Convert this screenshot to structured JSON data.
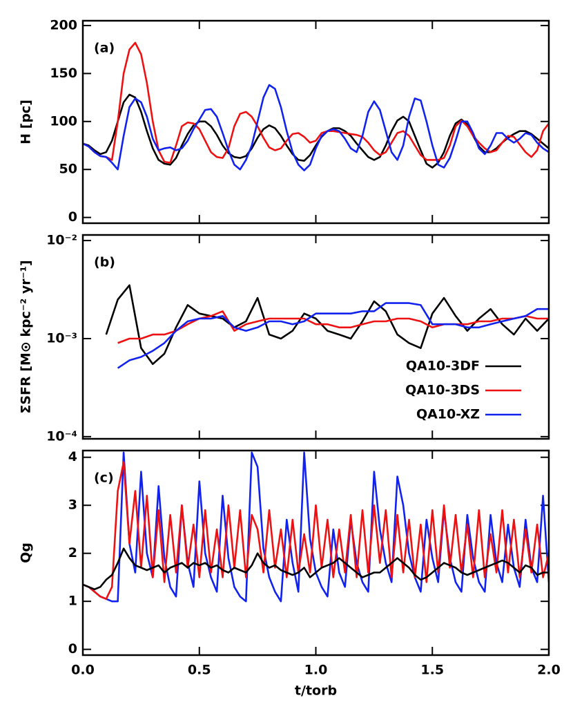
{
  "chart_data": [
    {
      "type": "line",
      "annotation": "(a)",
      "ylabel": "H [pc]",
      "xlim": [
        0,
        2
      ],
      "ylim": [
        -6,
        205
      ],
      "yticks": [
        0,
        50,
        100,
        150,
        200
      ],
      "x": [
        0,
        0.025,
        0.05,
        0.075,
        0.1,
        0.125,
        0.15,
        0.175,
        0.2,
        0.225,
        0.25,
        0.275,
        0.3,
        0.325,
        0.35,
        0.375,
        0.4,
        0.425,
        0.45,
        0.475,
        0.5,
        0.525,
        0.55,
        0.575,
        0.6,
        0.625,
        0.65,
        0.675,
        0.7,
        0.725,
        0.75,
        0.775,
        0.8,
        0.825,
        0.85,
        0.875,
        0.9,
        0.925,
        0.95,
        0.975,
        1,
        1.025,
        1.05,
        1.075,
        1.1,
        1.125,
        1.15,
        1.175,
        1.2,
        1.225,
        1.25,
        1.275,
        1.3,
        1.325,
        1.35,
        1.375,
        1.4,
        1.425,
        1.45,
        1.475,
        1.5,
        1.525,
        1.55,
        1.575,
        1.6,
        1.625,
        1.65,
        1.675,
        1.7,
        1.725,
        1.75,
        1.775,
        1.8,
        1.825,
        1.85,
        1.875,
        1.9,
        1.925,
        1.95,
        1.975,
        2
      ],
      "series": [
        {
          "name": "QA10-3DF",
          "color": "#000000",
          "values": [
            77,
            75,
            70,
            66,
            68,
            80,
            100,
            120,
            128,
            125,
            110,
            90,
            72,
            60,
            56,
            55,
            62,
            75,
            87,
            96,
            100,
            100,
            95,
            86,
            75,
            67,
            63,
            62,
            64,
            72,
            83,
            92,
            96,
            93,
            85,
            75,
            66,
            60,
            59,
            65,
            75,
            84,
            90,
            93,
            93,
            90,
            85,
            77,
            70,
            63,
            60,
            63,
            75,
            90,
            101,
            105,
            100,
            85,
            70,
            56,
            52,
            57,
            68,
            85,
            98,
            102,
            97,
            85,
            74,
            68,
            68,
            72,
            78,
            83,
            87,
            90,
            90,
            87,
            82,
            77,
            72
          ]
        },
        {
          "name": "QA10-3DS",
          "color": "#ee1111",
          "values": [
            77,
            74,
            68,
            64,
            63,
            60,
            100,
            150,
            175,
            182,
            170,
            140,
            100,
            70,
            58,
            57,
            75,
            95,
            99,
            98,
            92,
            80,
            68,
            63,
            62,
            72,
            95,
            108,
            110,
            105,
            95,
            83,
            73,
            70,
            72,
            80,
            87,
            88,
            84,
            78,
            80,
            88,
            90,
            90,
            89,
            88,
            87,
            86,
            84,
            78,
            70,
            65,
            68,
            78,
            88,
            90,
            85,
            75,
            65,
            60,
            60,
            60,
            62,
            75,
            95,
            101,
            95,
            85,
            78,
            72,
            68,
            70,
            78,
            85,
            84,
            76,
            68,
            63,
            70,
            90,
            98
          ]
        },
        {
          "name": "QA10-XZ",
          "color": "#1122ee",
          "values": [
            77,
            74,
            68,
            64,
            63,
            57,
            50,
            85,
            115,
            124,
            120,
            105,
            82,
            70,
            72,
            73,
            70,
            72,
            80,
            92,
            102,
            112,
            113,
            105,
            88,
            70,
            55,
            50,
            60,
            75,
            100,
            125,
            138,
            134,
            115,
            90,
            68,
            55,
            49,
            55,
            72,
            85,
            90,
            92,
            90,
            82,
            72,
            68,
            85,
            110,
            121,
            112,
            90,
            68,
            60,
            75,
            105,
            124,
            122,
            100,
            75,
            55,
            52,
            62,
            80,
            100,
            100,
            88,
            72,
            66,
            75,
            88,
            88,
            82,
            78,
            82,
            88,
            86,
            78,
            72,
            68
          ]
        }
      ]
    },
    {
      "type": "line",
      "annotation": "(b)",
      "ylabel": "ΣSFR [M⊙ kpc⁻² yr⁻¹]",
      "log": true,
      "legend": "right",
      "xlim": [
        0,
        2
      ],
      "ylim": [
        9.5e-05,
        0.0114
      ],
      "yticks": [
        {
          "value": 0.0001,
          "label": "10⁻⁴"
        },
        {
          "value": 0.001,
          "label": "10⁻³"
        },
        {
          "value": 0.01,
          "label": "10⁻²"
        }
      ],
      "x": [
        0,
        0.05,
        0.1,
        0.15,
        0.2,
        0.25,
        0.3,
        0.35,
        0.4,
        0.45,
        0.5,
        0.55,
        0.6,
        0.65,
        0.7,
        0.75,
        0.8,
        0.85,
        0.9,
        0.95,
        1,
        1.05,
        1.1,
        1.15,
        1.2,
        1.25,
        1.3,
        1.35,
        1.4,
        1.45,
        1.5,
        1.55,
        1.6,
        1.65,
        1.7,
        1.75,
        1.8,
        1.85,
        1.9,
        1.95,
        2
      ],
      "series": [
        {
          "name": "QA10-3DF",
          "color": "#000000",
          "values": [
            null,
            null,
            0.0011,
            0.0025,
            0.0035,
            0.0008,
            0.00055,
            0.0007,
            0.0013,
            0.0022,
            0.0018,
            0.0017,
            0.0016,
            0.0013,
            0.0015,
            0.0026,
            0.0011,
            0.001,
            0.0012,
            0.0018,
            0.0016,
            0.0012,
            0.0011,
            0.001,
            0.0015,
            0.0024,
            0.0019,
            0.0011,
            0.0009,
            0.0008,
            0.0018,
            0.0026,
            0.0017,
            0.0012,
            0.0016,
            0.002,
            0.0014,
            0.0011,
            0.0016,
            0.0012,
            0.0016
          ]
        },
        {
          "name": "QA10-3DS",
          "color": "#ee1111",
          "values": [
            null,
            null,
            null,
            0.0009,
            0.001,
            0.001,
            0.0011,
            0.0011,
            0.0012,
            0.0014,
            0.0016,
            0.0017,
            0.0019,
            0.0012,
            0.0014,
            0.0015,
            0.0016,
            0.0016,
            0.0016,
            0.0016,
            0.0014,
            0.0014,
            0.0013,
            0.0013,
            0.0014,
            0.0015,
            0.0015,
            0.0016,
            0.0016,
            0.0015,
            0.0013,
            0.0014,
            0.0014,
            0.0014,
            0.0015,
            0.0015,
            0.0016,
            0.0016,
            0.0017,
            0.0016,
            0.0016
          ]
        },
        {
          "name": "QA10-XZ",
          "color": "#1122ee",
          "values": [
            null,
            null,
            null,
            0.0005,
            0.0006,
            0.00065,
            0.00075,
            0.0009,
            0.0012,
            0.0015,
            0.0016,
            0.0016,
            0.0017,
            0.0013,
            0.0012,
            0.0013,
            0.0015,
            0.0015,
            0.0014,
            0.0015,
            0.0018,
            0.0018,
            0.0018,
            0.0018,
            0.0019,
            0.0019,
            0.0023,
            0.0023,
            0.0023,
            0.0022,
            0.0014,
            0.0014,
            0.0014,
            0.0013,
            0.0013,
            0.0014,
            0.0015,
            0.0016,
            0.0017,
            0.002,
            0.002
          ]
        }
      ]
    },
    {
      "type": "line",
      "annotation": "(c)",
      "ylabel": "Qg",
      "xlabel": "t/torb",
      "xlim": [
        0,
        2
      ],
      "ylim": [
        -0.12,
        4.14
      ],
      "yticks": [
        0,
        1,
        2,
        3,
        4
      ],
      "xticks": [
        {
          "value": 0,
          "label": "0.0"
        },
        {
          "value": 0.5,
          "label": "0.5"
        },
        {
          "value": 1,
          "label": "1.0"
        },
        {
          "value": 1.5,
          "label": "1.5"
        },
        {
          "value": 2,
          "label": "2.0"
        }
      ],
      "x": [
        0,
        0.025,
        0.05,
        0.075,
        0.1,
        0.125,
        0.15,
        0.175,
        0.2,
        0.225,
        0.25,
        0.275,
        0.3,
        0.325,
        0.35,
        0.375,
        0.4,
        0.425,
        0.45,
        0.475,
        0.5,
        0.525,
        0.55,
        0.575,
        0.6,
        0.625,
        0.65,
        0.675,
        0.7,
        0.725,
        0.75,
        0.775,
        0.8,
        0.825,
        0.85,
        0.875,
        0.9,
        0.925,
        0.95,
        0.975,
        1,
        1.025,
        1.05,
        1.075,
        1.1,
        1.125,
        1.15,
        1.175,
        1.2,
        1.225,
        1.25,
        1.275,
        1.3,
        1.325,
        1.35,
        1.375,
        1.4,
        1.425,
        1.45,
        1.475,
        1.5,
        1.525,
        1.55,
        1.575,
        1.6,
        1.625,
        1.65,
        1.675,
        1.7,
        1.725,
        1.75,
        1.775,
        1.8,
        1.825,
        1.85,
        1.875,
        1.9,
        1.925,
        1.95,
        1.975,
        2
      ],
      "series": [
        {
          "name": "QA10-XZ",
          "color": "#1122ee",
          "values": [
            1.35,
            1.3,
            1.2,
            1.1,
            1.05,
            1.0,
            1.0,
            4.1,
            2.2,
            1.6,
            3.7,
            2.0,
            1.5,
            3.4,
            1.9,
            1.3,
            1.1,
            3.0,
            1.8,
            1.3,
            3.5,
            2.0,
            1.5,
            1.2,
            3.2,
            1.9,
            1.3,
            1.1,
            1.0,
            4.1,
            3.8,
            2.1,
            1.5,
            1.2,
            1.0,
            2.7,
            1.8,
            1.2,
            4.1,
            2.3,
            1.6,
            1.3,
            1.1,
            2.5,
            1.6,
            1.3,
            2.7,
            1.8,
            1.4,
            1.2,
            3.7,
            2.5,
            1.8,
            1.4,
            3.6,
            3.0,
            2.0,
            1.5,
            1.2,
            2.7,
            1.9,
            1.4,
            2.9,
            1.9,
            1.4,
            1.2,
            2.8,
            1.9,
            1.4,
            1.2,
            2.8,
            1.8,
            1.4,
            2.6,
            1.7,
            1.3,
            2.7,
            1.7,
            1.4,
            3.2,
            1.4
          ]
        },
        {
          "name": "QA10-3DS",
          "color": "#ee1111",
          "values": [
            1.35,
            1.3,
            1.2,
            1.1,
            1.05,
            1.3,
            3.3,
            3.9,
            2.2,
            3.3,
            1.7,
            3.2,
            1.5,
            2.9,
            1.4,
            2.8,
            1.6,
            3.0,
            1.7,
            2.6,
            1.5,
            2.9,
            1.6,
            2.5,
            1.5,
            3.0,
            1.7,
            2.9,
            1.5,
            2.8,
            2.5,
            1.6,
            2.9,
            1.7,
            2.5,
            1.5,
            2.7,
            1.6,
            2.4,
            1.6,
            3.0,
            1.7,
            2.7,
            1.5,
            2.5,
            1.6,
            2.8,
            1.5,
            2.9,
            1.6,
            3.0,
            1.8,
            2.9,
            1.5,
            2.8,
            1.6,
            2.7,
            1.5,
            2.6,
            1.4,
            2.9,
            1.6,
            3.0,
            1.7,
            2.8,
            1.6,
            2.6,
            1.5,
            2.9,
            1.5,
            2.4,
            1.6,
            2.9,
            1.6,
            2.7,
            1.5,
            2.5,
            1.6,
            2.6,
            1.5,
            2.0
          ]
        },
        {
          "name": "QA10-3DF",
          "color": "#000000",
          "values": [
            1.35,
            1.3,
            1.25,
            1.3,
            1.45,
            1.55,
            1.8,
            2.1,
            1.9,
            1.75,
            1.7,
            1.65,
            1.7,
            1.75,
            1.6,
            1.7,
            1.75,
            1.8,
            1.7,
            1.8,
            1.75,
            1.8,
            1.7,
            1.75,
            1.65,
            1.6,
            1.7,
            1.65,
            1.6,
            1.75,
            2.0,
            1.8,
            1.7,
            1.75,
            1.65,
            1.6,
            1.55,
            1.6,
            1.7,
            1.5,
            1.6,
            1.7,
            1.75,
            1.8,
            1.9,
            1.8,
            1.7,
            1.6,
            1.5,
            1.55,
            1.6,
            1.6,
            1.7,
            1.8,
            1.9,
            1.8,
            1.7,
            1.55,
            1.45,
            1.5,
            1.6,
            1.7,
            1.8,
            1.75,
            1.7,
            1.6,
            1.55,
            1.6,
            1.65,
            1.7,
            1.75,
            1.8,
            1.85,
            1.8,
            1.7,
            1.6,
            1.75,
            1.7,
            1.55,
            1.6,
            1.6
          ]
        }
      ]
    }
  ]
}
